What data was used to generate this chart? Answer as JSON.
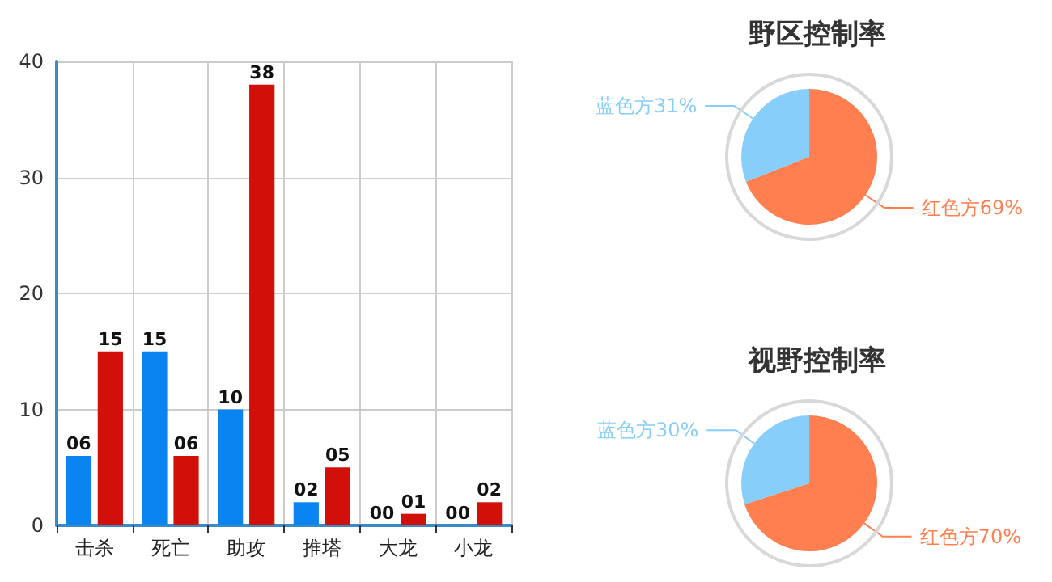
{
  "chart_data": [
    {
      "type": "bar",
      "categories": [
        "击杀",
        "死亡",
        "助攻",
        "推塔",
        "大龙",
        "小龙"
      ],
      "series": [
        {
          "color": "#0a84f0",
          "values": [
            6,
            15,
            10,
            2,
            0,
            0
          ],
          "value_labels": [
            "06",
            "15",
            "10",
            "02",
            "00",
            "00"
          ]
        },
        {
          "color": "#d2100a",
          "values": [
            15,
            6,
            38,
            5,
            1,
            2
          ],
          "value_labels": [
            "15",
            "06",
            "38",
            "05",
            "01",
            "02"
          ]
        }
      ],
      "ylim": [
        0,
        40
      ],
      "yticks": [
        0,
        10,
        20,
        30,
        40
      ],
      "grid": true,
      "legend": false
    },
    {
      "type": "pie",
      "title": "野区控制率",
      "categories": [
        "蓝色方",
        "红色方"
      ],
      "values": [
        31,
        69
      ],
      "colors": [
        "#87cefa",
        "#ff7f50"
      ],
      "value_labels": [
        "31%",
        "69%"
      ],
      "legend": false
    },
    {
      "type": "pie",
      "title": "视野控制率",
      "categories": [
        "蓝色方",
        "红色方"
      ],
      "values": [
        30,
        70
      ],
      "colors": [
        "#87cefa",
        "#ff7f50"
      ],
      "value_labels": [
        "30%",
        "70%"
      ],
      "legend": false
    }
  ]
}
